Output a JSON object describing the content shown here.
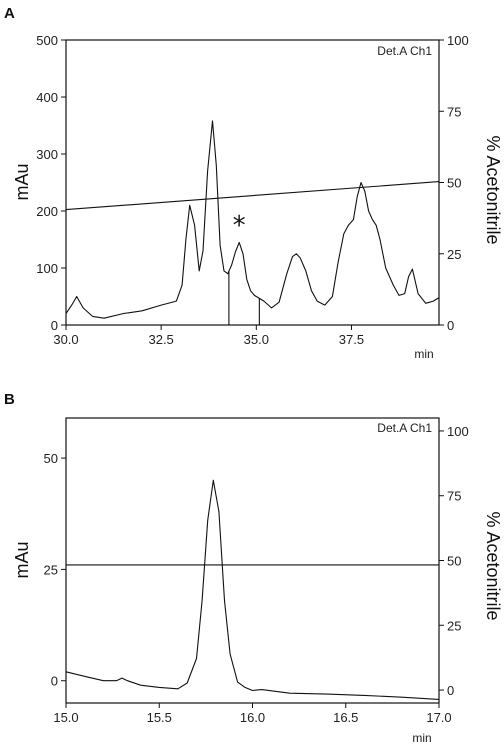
{
  "chart_data": [
    {
      "type": "line",
      "panel_label": "A",
      "detector_label": "Det.A Ch1",
      "ylabel": "mAu",
      "ylabel_right": "% Acetonitrile",
      "xlabel": "min",
      "xlim": [
        30.0,
        39.8
      ],
      "ylim": [
        0,
        500
      ],
      "ylim_right": [
        0,
        100
      ],
      "x_ticks": [
        "30.0",
        "32.5",
        "35.0",
        "37.5"
      ],
      "x_tick_values": [
        30.0,
        32.5,
        35.0,
        37.5
      ],
      "y_ticks": [
        "0",
        "100",
        "200",
        "300",
        "400",
        "500"
      ],
      "y_tick_values": [
        0,
        100,
        200,
        300,
        400,
        500
      ],
      "y_right_ticks": [
        "0",
        "25",
        "50",
        "75",
        "100"
      ],
      "y_right_tick_values": [
        0,
        25,
        50,
        75,
        100
      ],
      "annotation": "*",
      "annotation_x": 34.55,
      "annotation_y": 160,
      "fraction_marks": [
        34.28,
        35.08
      ],
      "series": [
        {
          "axis": "left",
          "x": [
            30.0,
            30.15,
            30.28,
            30.45,
            30.7,
            31.0,
            31.5,
            32.0,
            32.5,
            32.9,
            33.05,
            33.15,
            33.25,
            33.38,
            33.5,
            33.6,
            33.72,
            33.85,
            33.95,
            34.05,
            34.15,
            34.25,
            34.35,
            34.45,
            34.55,
            34.65,
            34.75,
            34.85,
            34.95,
            35.05,
            35.2,
            35.4,
            35.6,
            35.8,
            35.95,
            36.05,
            36.15,
            36.3,
            36.45,
            36.6,
            36.8,
            37.0,
            37.15,
            37.3,
            37.42,
            37.55,
            37.65,
            37.75,
            37.85,
            37.95,
            38.05,
            38.15,
            38.25,
            38.4,
            38.6,
            38.75,
            38.9,
            39.0,
            39.1,
            39.25,
            39.45,
            39.65,
            39.8
          ],
          "y": [
            20,
            35,
            50,
            30,
            15,
            12,
            20,
            25,
            35,
            42,
            70,
            150,
            210,
            175,
            95,
            130,
            270,
            358,
            280,
            140,
            95,
            90,
            105,
            128,
            145,
            125,
            80,
            60,
            52,
            48,
            42,
            30,
            40,
            90,
            120,
            125,
            118,
            95,
            60,
            42,
            35,
            50,
            110,
            160,
            175,
            185,
            225,
            250,
            235,
            200,
            185,
            175,
            150,
            100,
            70,
            52,
            55,
            85,
            98,
            55,
            38,
            42,
            48
          ]
        },
        {
          "axis": "right",
          "x": [
            30.0,
            39.8
          ],
          "y": [
            40.5,
            50.3
          ]
        }
      ]
    },
    {
      "type": "line",
      "panel_label": "B",
      "detector_label": "Det.A Ch1",
      "ylabel": "mAu",
      "ylabel_right": "% Acetonitrile",
      "xlabel": "min",
      "xlim": [
        15.0,
        17.0
      ],
      "ylim": [
        -5,
        59
      ],
      "ylim_right": [
        -5,
        105
      ],
      "x_ticks": [
        "15.0",
        "15.5",
        "16.0",
        "16.5",
        "17.0"
      ],
      "x_tick_values": [
        15.0,
        15.5,
        16.0,
        16.5,
        17.0
      ],
      "y_ticks": [
        "0",
        "25",
        "50"
      ],
      "y_tick_values": [
        0,
        25,
        50
      ],
      "y_right_ticks": [
        "0",
        "25",
        "50",
        "75",
        "100"
      ],
      "y_right_tick_values": [
        0,
        25,
        50,
        75,
        100
      ],
      "series": [
        {
          "axis": "left",
          "x": [
            15.0,
            15.1,
            15.2,
            15.27,
            15.3,
            15.33,
            15.4,
            15.5,
            15.6,
            15.65,
            15.7,
            15.73,
            15.76,
            15.79,
            15.82,
            15.85,
            15.88,
            15.92,
            15.96,
            16.0,
            16.05,
            16.2,
            16.4,
            16.6,
            16.8,
            17.0
          ],
          "y": [
            2.0,
            1.0,
            0.0,
            0.0,
            0.6,
            0.0,
            -1.0,
            -1.5,
            -1.8,
            -0.5,
            5.0,
            18.0,
            36.0,
            45.0,
            38.0,
            18.0,
            6.0,
            -0.3,
            -1.5,
            -2.2,
            -2.0,
            -2.8,
            -3.0,
            -3.3,
            -3.7,
            -4.2
          ]
        },
        {
          "axis": "right",
          "x": [
            15.0,
            17.0
          ],
          "y": [
            48.3,
            48.3
          ]
        }
      ]
    }
  ]
}
